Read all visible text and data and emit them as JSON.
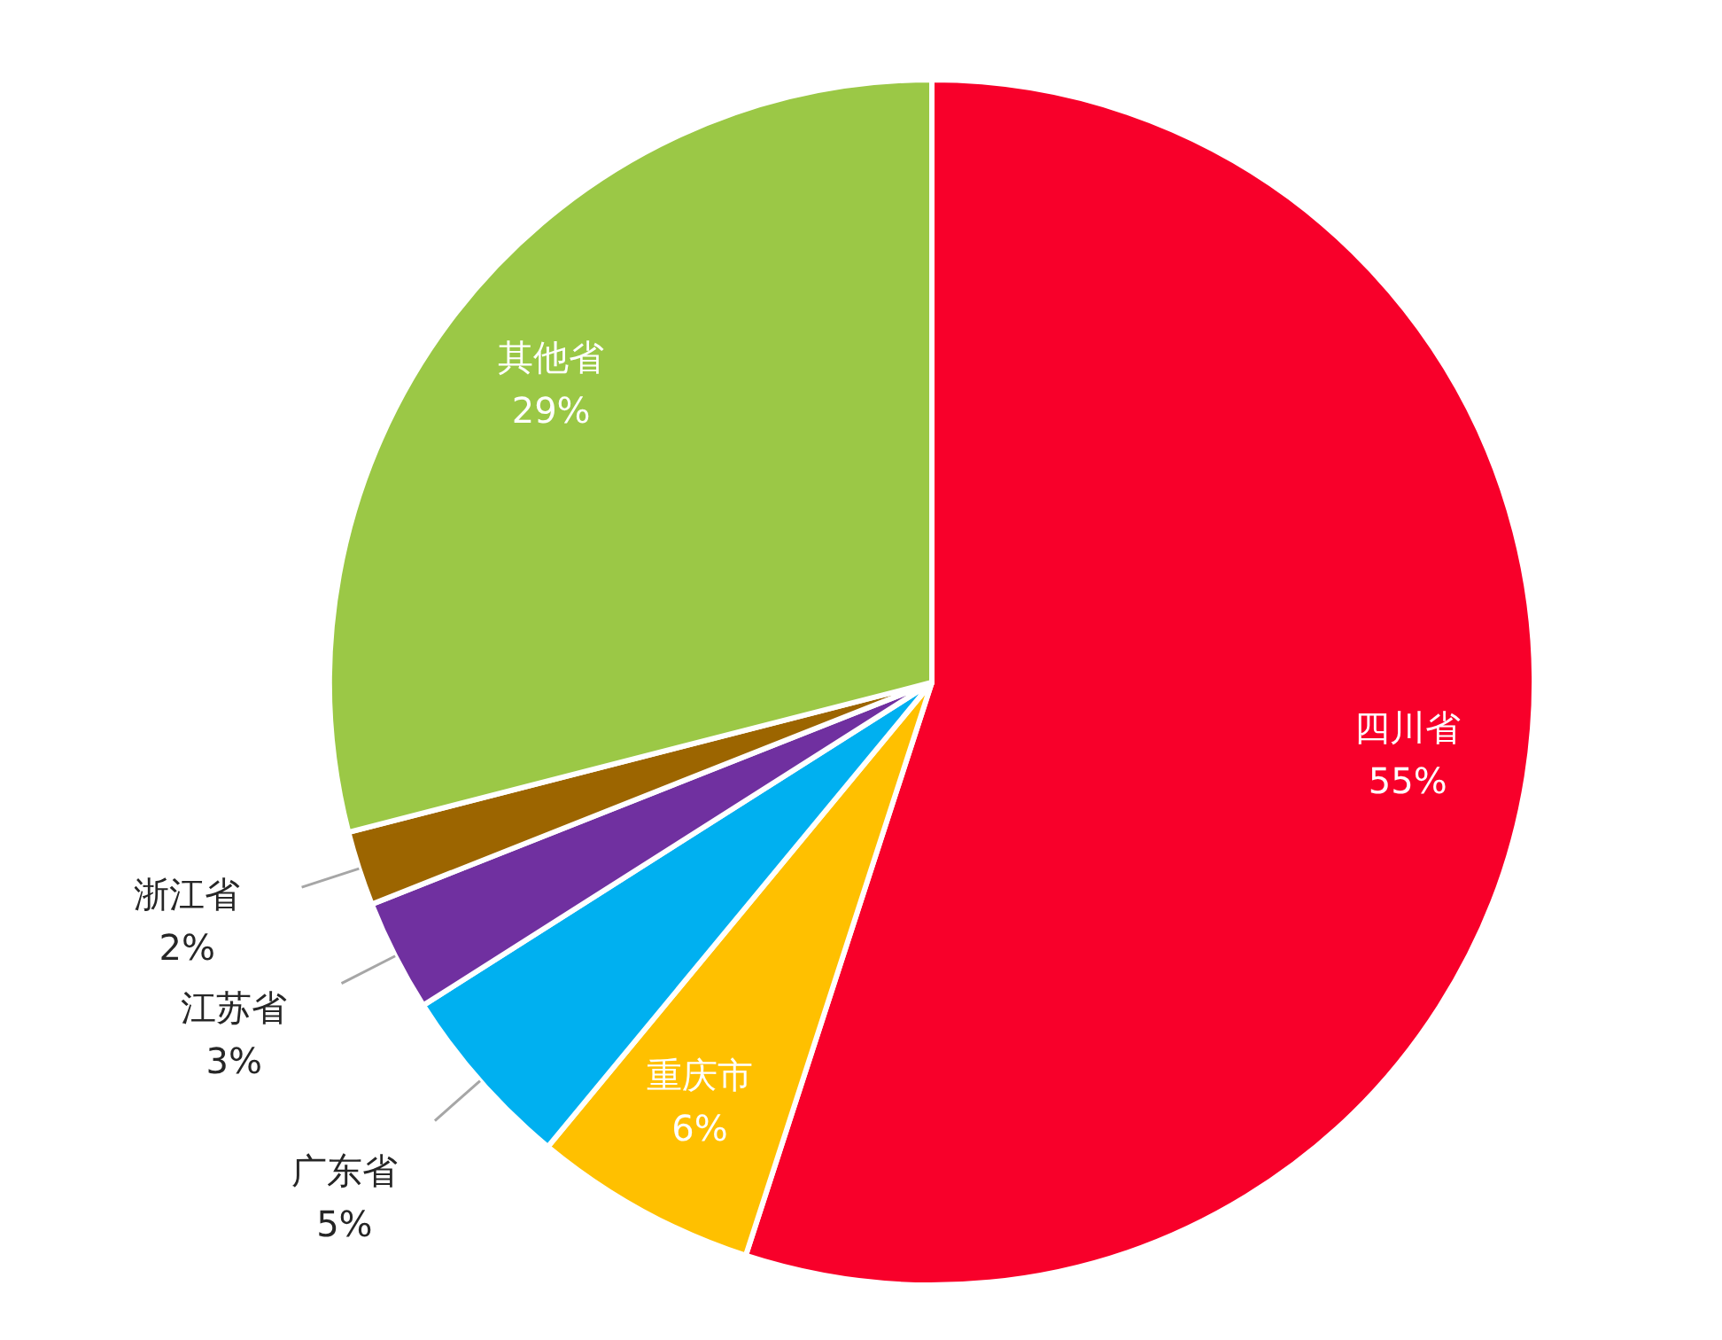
{
  "chart_data": {
    "type": "pie",
    "categories": [
      "四川省",
      "重庆市",
      "广东省",
      "江苏省",
      "浙江省",
      "其他省"
    ],
    "values": [
      55,
      6,
      5,
      3,
      2,
      29
    ],
    "colors": [
      "#f8002a",
      "#ffc000",
      "#00b0f0",
      "#7030a0",
      "#9c6500",
      "#9bc846"
    ],
    "value_labels": [
      "55%",
      "6%",
      "5%",
      "3%",
      "2%",
      "29%"
    ]
  }
}
